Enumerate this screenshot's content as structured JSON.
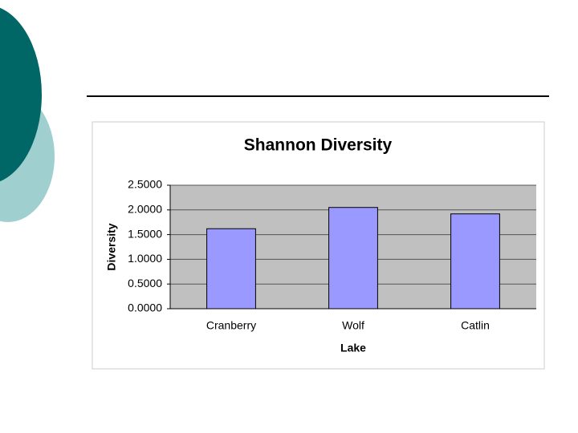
{
  "chart_data": {
    "type": "bar",
    "title": "Shannon Diversity",
    "x_label": "Lake",
    "y_label": "Diversity",
    "categories": [
      "Cranberry",
      "Wolf",
      "Catlin"
    ],
    "values": [
      1.62,
      2.05,
      1.92
    ],
    "color": "#9999ff",
    "ylim": [
      0,
      2.5
    ],
    "yticks": [
      {
        "value": 0,
        "label": "0.0000"
      },
      {
        "value": 0.5,
        "label": "0.5000"
      },
      {
        "value": 1,
        "label": "1.0000"
      },
      {
        "value": 1.5,
        "label": "1.5000"
      },
      {
        "value": 2,
        "label": "2.0000"
      },
      {
        "value": 2.5,
        "label": "2.5000"
      }
    ],
    "grid": true
  }
}
